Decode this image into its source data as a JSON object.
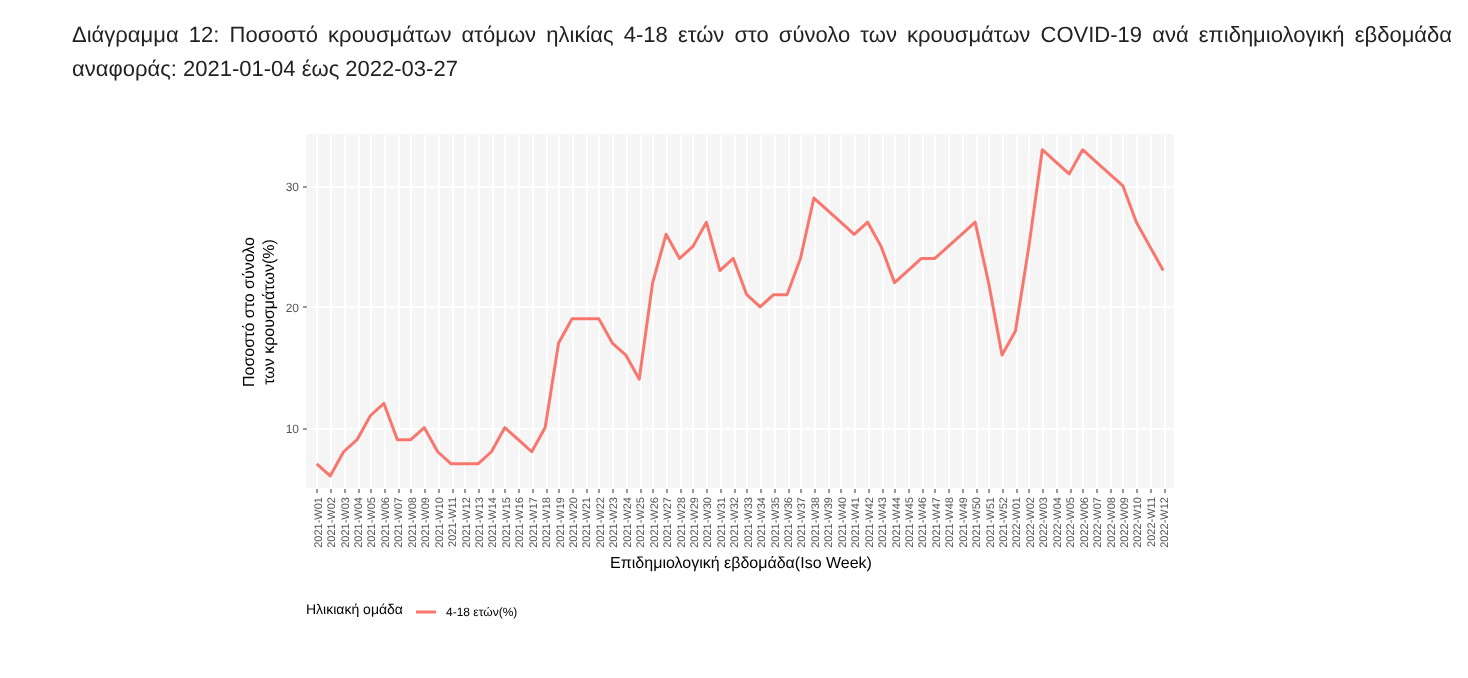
{
  "chart_data": {
    "type": "line",
    "title": "Διάγραμμα 12:  Ποσοστό κρουσμάτων ατόμων ηλικίας 4-18 ετών στο σύνολο των κρουσμάτων COVID-19 ανά επιδημιολογική εβδομάδα αναφοράς: 2021-01-04 έως 2022-03-27",
    "xlabel": "Επιδημιολογική εβδομάδα(Iso Week)",
    "ylabel": "Ποσοστό στο σύνολο\nτων κρουσμάτων(%)",
    "legend_title": "Ηλικιακή ομάδα",
    "categories": [
      "2021-W01",
      "2021-W02",
      "2021-W03",
      "2021-W04",
      "2021-W05",
      "2021-W06",
      "2021-W07",
      "2021-W08",
      "2021-W09",
      "2021-W10",
      "2021-W11",
      "2021-W12",
      "2021-W13",
      "2021-W14",
      "2021-W15",
      "2021-W16",
      "2021-W17",
      "2021-W18",
      "2021-W19",
      "2021-W20",
      "2021-W21",
      "2021-W22",
      "2021-W23",
      "2021-W24",
      "2021-W25",
      "2021-W26",
      "2021-W27",
      "2021-W28",
      "2021-W29",
      "2021-W30",
      "2021-W31",
      "2021-W32",
      "2021-W33",
      "2021-W34",
      "2021-W35",
      "2021-W36",
      "2021-W37",
      "2021-W38",
      "2021-W39",
      "2021-W40",
      "2021-W41",
      "2021-W42",
      "2021-W43",
      "2021-W44",
      "2021-W45",
      "2021-W46",
      "2021-W47",
      "2021-W48",
      "2021-W49",
      "2021-W50",
      "2021-W51",
      "2021-W52",
      "2022-W01",
      "2022-W02",
      "2022-W03",
      "2022-W04",
      "2022-W05",
      "2022-W06",
      "2022-W07",
      "2022-W08",
      "2022-W09",
      "2022-W10",
      "2022-W11",
      "2022-W12"
    ],
    "series": [
      {
        "name": "4-18 ετών(%)",
        "color": "#f8766d",
        "values": [
          7,
          6,
          8,
          9,
          11,
          12,
          9,
          9,
          10,
          8,
          7,
          7,
          7,
          8,
          10,
          9,
          8,
          10,
          17,
          19,
          19,
          19,
          17,
          16,
          14,
          22,
          26,
          24,
          25,
          27,
          23,
          24,
          21,
          20,
          21,
          21,
          24,
          29,
          28,
          27,
          26,
          27,
          25,
          22,
          23,
          24,
          24,
          25,
          26,
          27,
          22,
          16,
          18,
          25,
          33,
          32,
          31,
          33,
          32,
          31,
          30,
          27,
          25,
          23
        ]
      }
    ],
    "ylim": [
      5,
      34.3
    ],
    "yticks": [
      10,
      20,
      30
    ],
    "grid": true,
    "legend": "bottom",
    "line_style": "solid"
  }
}
